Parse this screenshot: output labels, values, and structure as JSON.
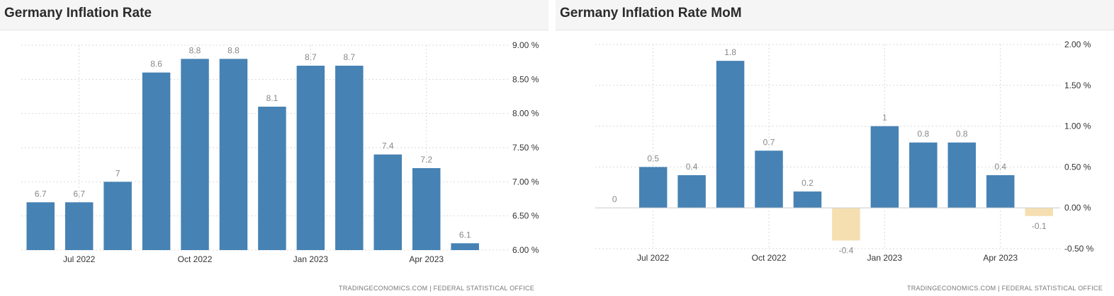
{
  "source_note": "TRADINGECONOMICS.COM  |  FEDERAL STATISTICAL OFFICE",
  "chart_data": [
    {
      "type": "bar",
      "title": "Germany Inflation Rate",
      "categories": [
        "Jun 2022",
        "Jul 2022",
        "Aug 2022",
        "Sep 2022",
        "Oct 2022",
        "Nov 2022",
        "Dec 2022",
        "Jan 2023",
        "Feb 2023",
        "Mar 2023",
        "Apr 2023",
        "May 2023"
      ],
      "values": [
        6.7,
        6.7,
        7,
        8.6,
        8.8,
        8.8,
        8.1,
        8.7,
        8.7,
        7.4,
        7.2,
        6.1
      ],
      "value_labels": [
        "6.7",
        "6.7",
        "7",
        "8.6",
        "8.8",
        "8.8",
        "8.1",
        "8.7",
        "8.7",
        "7.4",
        "7.2",
        "6.1"
      ],
      "ylim": [
        6.0,
        9.0
      ],
      "y_ticks": [
        6.0,
        6.5,
        7.0,
        7.5,
        8.0,
        8.5,
        9.0
      ],
      "y_tick_labels": [
        "6.00 %",
        "6.50 %",
        "7.00 %",
        "7.50 %",
        "8.00 %",
        "8.50 %",
        "9.00 %"
      ],
      "x_ticks": [
        "Jul 2022",
        "Oct 2022",
        "Jan 2023",
        "Apr 2023"
      ],
      "x_tick_index": [
        1,
        4,
        7,
        10
      ],
      "grid": true,
      "colors": {
        "positive": "#4682b4",
        "negative": "#f5dfb0"
      }
    },
    {
      "type": "bar",
      "title": "Germany Inflation Rate MoM",
      "categories": [
        "Jun 2022",
        "Jul 2022",
        "Aug 2022",
        "Sep 2022",
        "Oct 2022",
        "Nov 2022",
        "Dec 2022",
        "Jan 2023",
        "Feb 2023",
        "Mar 2023",
        "Apr 2023",
        "May 2023"
      ],
      "values": [
        0,
        0.5,
        0.4,
        1.8,
        0.7,
        0.2,
        -0.4,
        1,
        0.8,
        0.8,
        0.4,
        -0.1
      ],
      "value_labels": [
        "0",
        "0.5",
        "0.4",
        "1.8",
        "0.7",
        "0.2",
        "-0.4",
        "1",
        "0.8",
        "0.8",
        "0.4",
        "-0.1"
      ],
      "ylim": [
        -0.5,
        2.0
      ],
      "y_ticks": [
        -0.5,
        0,
        0.5,
        1.0,
        1.5,
        2.0
      ],
      "y_tick_labels": [
        "-0.50 %",
        "0.00 %",
        "0.50 %",
        "1.00 %",
        "1.50 %",
        "2.00 %"
      ],
      "x_ticks": [
        "Jul 2022",
        "Oct 2022",
        "Jan 2023",
        "Apr 2023"
      ],
      "x_tick_index": [
        1,
        4,
        7,
        10
      ],
      "grid": true,
      "colors": {
        "positive": "#4682b4",
        "negative": "#f5dfb0"
      }
    }
  ]
}
